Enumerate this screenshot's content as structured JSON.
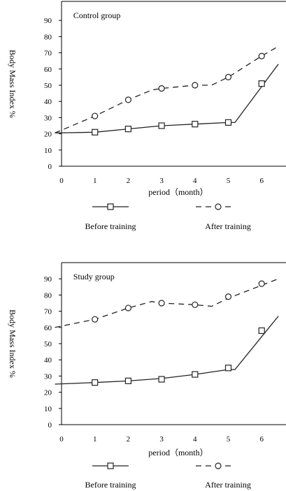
{
  "chart_data": [
    {
      "type": "line",
      "title": "Control group",
      "xlabel": "period（month）",
      "ylabel": "Body Mass Index %",
      "xticks": [
        "0",
        "1",
        "2",
        "3",
        "4",
        "5",
        "6"
      ],
      "yticks": [
        "0",
        "10",
        "20",
        "30",
        "40",
        "50",
        "60",
        "70",
        "80",
        "90"
      ],
      "ylim": [
        0,
        95
      ],
      "legend_position": "bottom",
      "series": [
        {
          "name": "Before training",
          "style": "solid-square",
          "line": [
            [
              -0.2,
              20.5
            ],
            [
              1,
              21
            ],
            [
              2,
              23
            ],
            [
              3,
              25
            ],
            [
              4,
              26
            ],
            [
              5,
              27
            ],
            [
              5.2,
              27
            ],
            [
              6.5,
              63
            ]
          ],
          "markers": [
            [
              1,
              21
            ],
            [
              2,
              23
            ],
            [
              3,
              25
            ],
            [
              4,
              26
            ],
            [
              5,
              27
            ],
            [
              6,
              51
            ]
          ]
        },
        {
          "name": "After training",
          "style": "dashed-circle",
          "line": [
            [
              -0.2,
              20.5
            ],
            [
              1,
              31
            ],
            [
              2,
              41
            ],
            [
              2.7,
              47
            ],
            [
              3,
              48
            ],
            [
              4,
              50
            ],
            [
              4.5,
              50
            ],
            [
              5,
              55
            ],
            [
              6,
              68
            ],
            [
              6.5,
              74
            ]
          ],
          "markers": [
            [
              1,
              31
            ],
            [
              2,
              41
            ],
            [
              3,
              48
            ],
            [
              4,
              50
            ],
            [
              5,
              55
            ],
            [
              6,
              68
            ]
          ]
        }
      ]
    },
    {
      "type": "line",
      "title": "Study group",
      "xlabel": "period（month）",
      "ylabel": "Body Mass Index %",
      "xticks": [
        "0",
        "1",
        "2",
        "3",
        "4",
        "5",
        "6"
      ],
      "yticks": [
        "0",
        "10",
        "20",
        "30",
        "40",
        "50",
        "60",
        "70",
        "80",
        "90"
      ],
      "ylim": [
        0,
        98
      ],
      "legend_position": "bottom",
      "series": [
        {
          "name": "Before training",
          "style": "solid-square",
          "line": [
            [
              -0.2,
              25
            ],
            [
              1,
              26
            ],
            [
              2,
              27
            ],
            [
              3,
              28.5
            ],
            [
              4,
              31
            ],
            [
              5,
              34
            ],
            [
              5.2,
              34
            ],
            [
              6.5,
              67
            ]
          ],
          "markers": [
            [
              1,
              26
            ],
            [
              2,
              27
            ],
            [
              3,
              28
            ],
            [
              4,
              31
            ],
            [
              5,
              35
            ],
            [
              6,
              58
            ]
          ]
        },
        {
          "name": "After training",
          "style": "dashed-circle",
          "line": [
            [
              -0.2,
              60
            ],
            [
              1,
              65
            ],
            [
              2,
              72
            ],
            [
              2.7,
              76
            ],
            [
              3,
              75
            ],
            [
              4,
              74
            ],
            [
              4.5,
              73
            ],
            [
              5,
              78
            ],
            [
              6,
              86
            ],
            [
              6.5,
              90
            ]
          ],
          "markers": [
            [
              1,
              65
            ],
            [
              2,
              72
            ],
            [
              3,
              75
            ],
            [
              4,
              74
            ],
            [
              5,
              79
            ],
            [
              6,
              87
            ]
          ]
        }
      ]
    }
  ]
}
